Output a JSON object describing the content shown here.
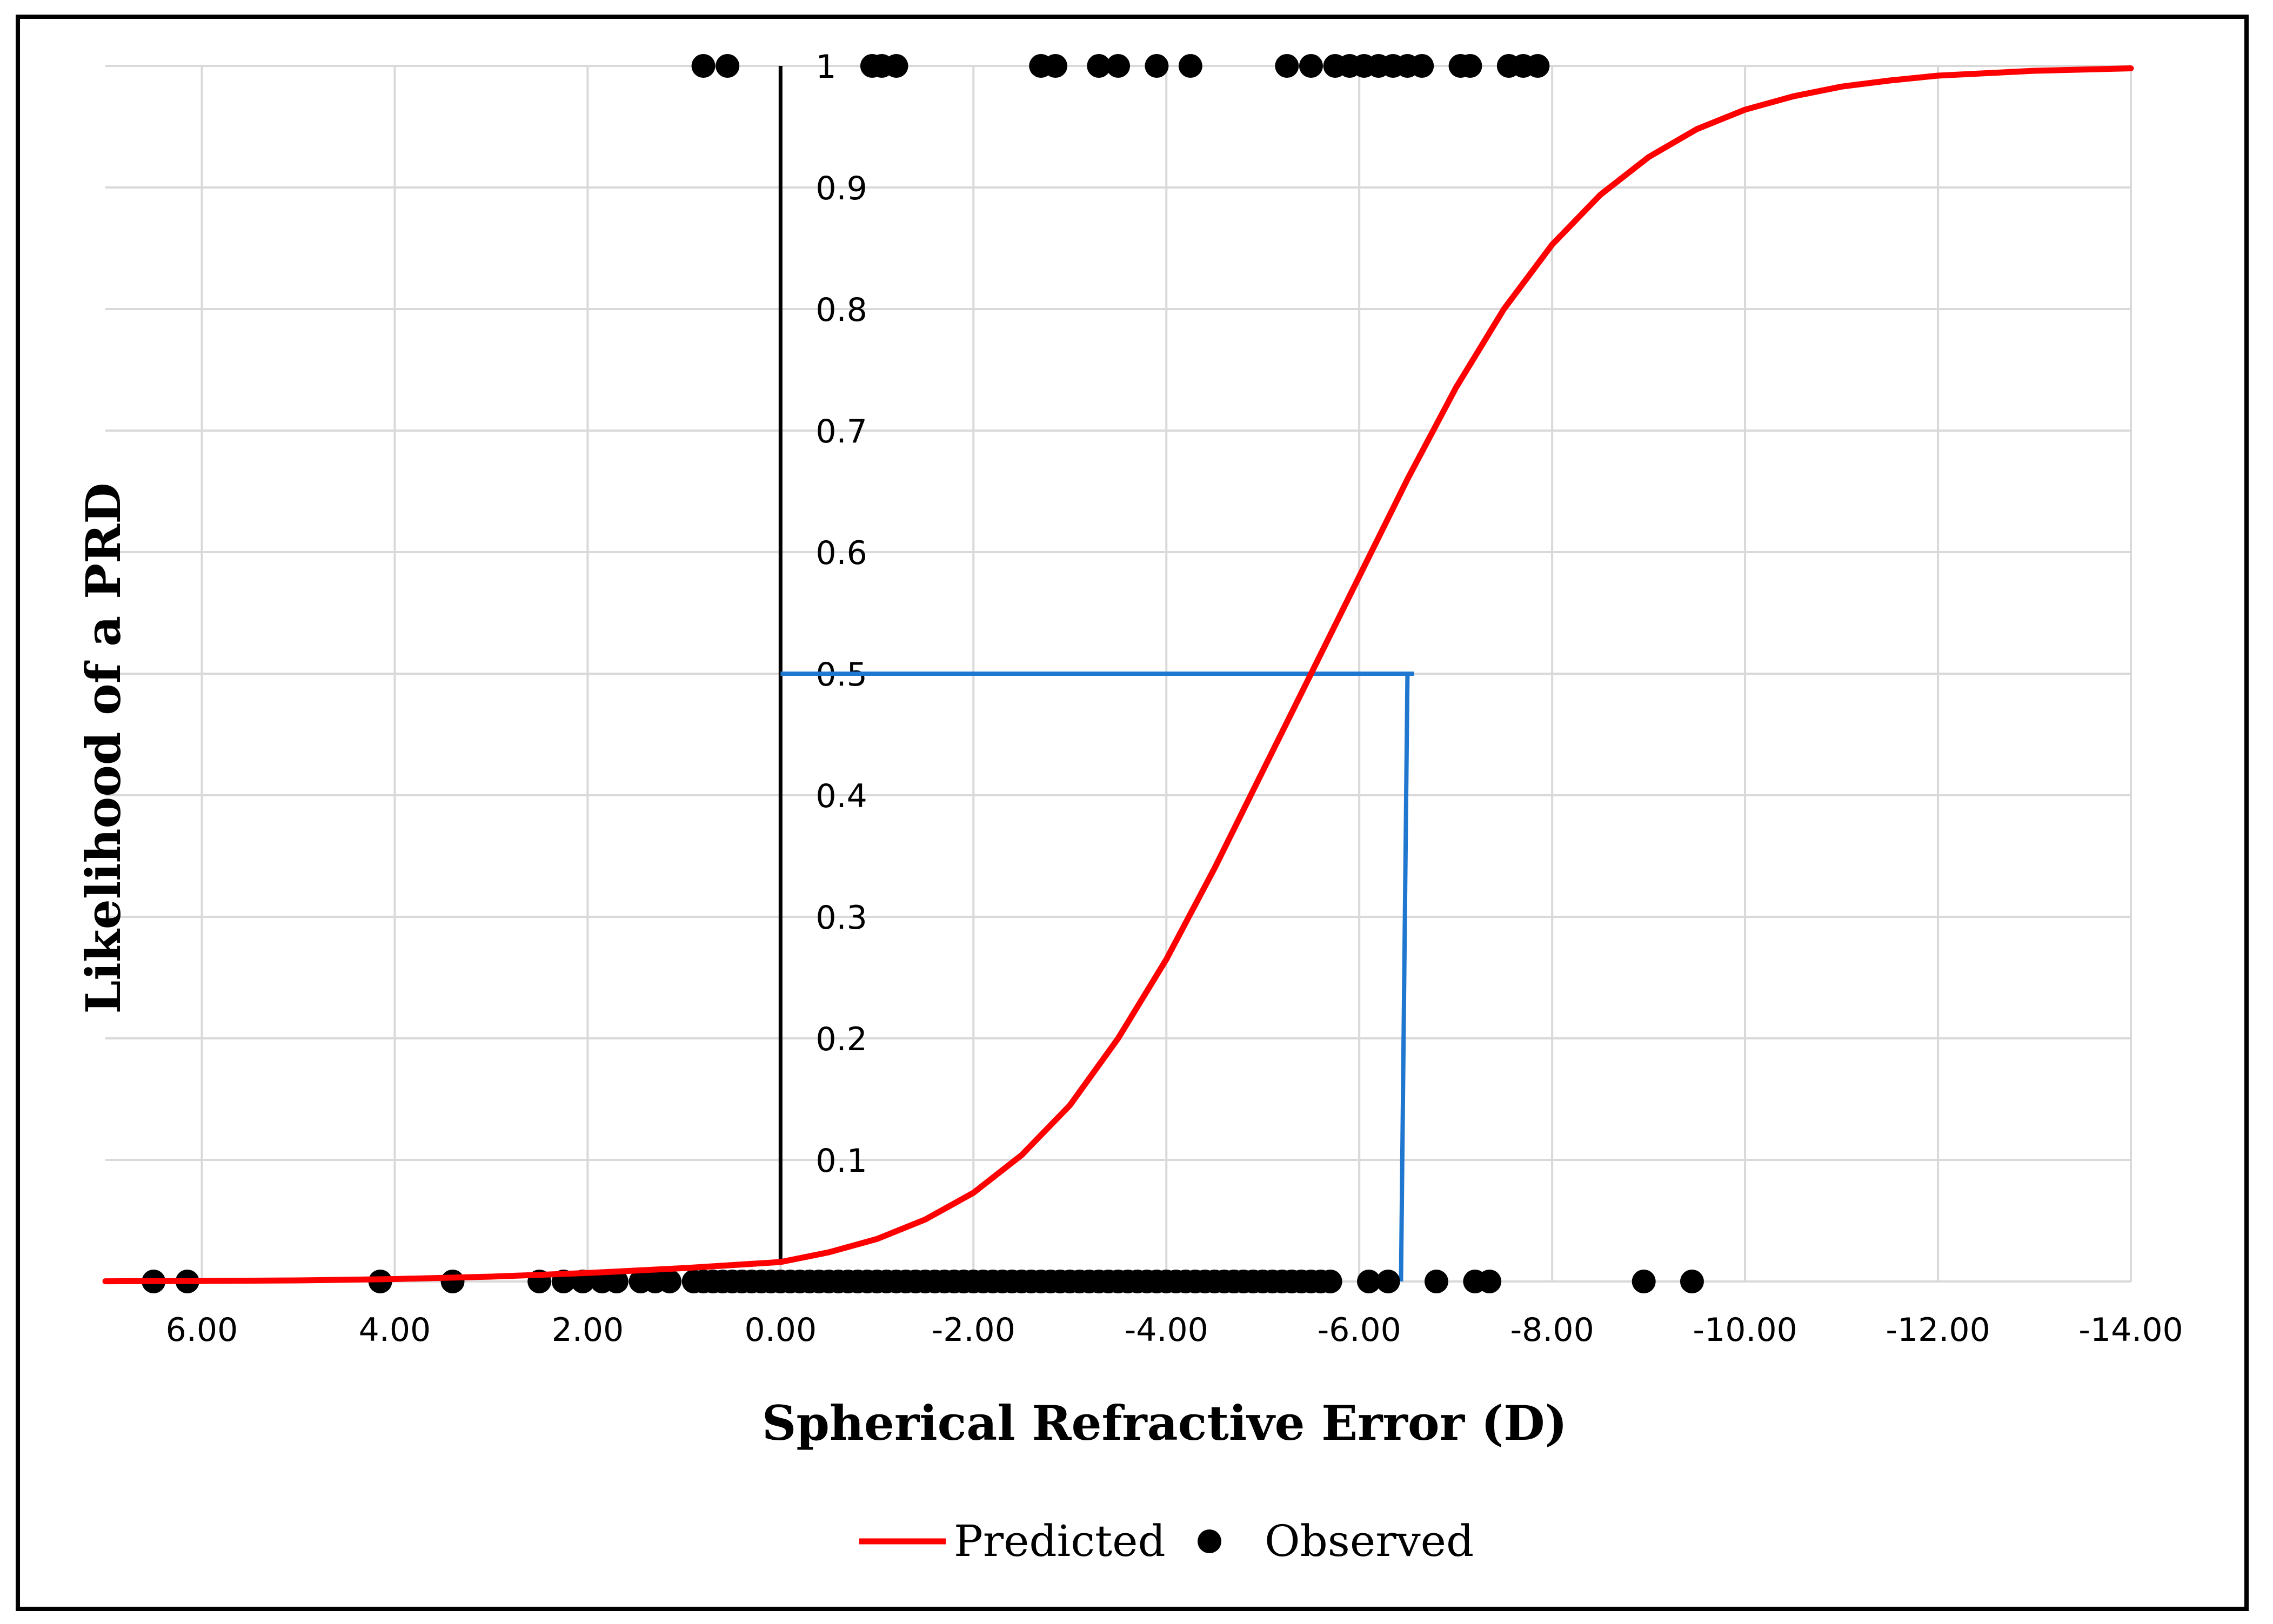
{
  "chart_data": {
    "type": "scatter",
    "xlabel": "Spherical Refractive Error (D)",
    "ylabel": "Likelihood of a PRD",
    "xlim": [
      7,
      -14
    ],
    "ylim": [
      0,
      1
    ],
    "x_ticks": [
      "6.00",
      "4.00",
      "2.00",
      "0.00",
      "-2.00",
      "-4.00",
      "-6.00",
      "-8.00",
      "-10.00",
      "-12.00",
      "-14.00"
    ],
    "y_ticks": [
      "0.1",
      "0.2",
      "0.3",
      "0.4",
      "0.5",
      "0.6",
      "0.7",
      "0.8",
      "0.9",
      "1"
    ],
    "grid": true,
    "legend_position": "bottom",
    "series": [
      {
        "name": "Predicted",
        "kind": "line",
        "color": "#ff0000",
        "x": [
          7,
          6,
          5,
          4,
          3,
          2,
          1,
          0,
          -0.5,
          -1,
          -1.5,
          -2,
          -2.5,
          -3,
          -3.5,
          -4,
          -4.5,
          -5,
          -5.5,
          -6,
          -6.5,
          -7,
          -7.5,
          -8,
          -8.5,
          -9,
          -9.5,
          -10,
          -10.5,
          -11,
          -11.5,
          -12,
          -12.5,
          -13,
          -13.5,
          -14
        ],
        "y": [
          0.0002,
          0.0004,
          0.0009,
          0.002,
          0.004,
          0.007,
          0.011,
          0.016,
          0.024,
          0.035,
          0.051,
          0.073,
          0.104,
          0.145,
          0.2,
          0.265,
          0.34,
          0.42,
          0.5,
          0.58,
          0.66,
          0.735,
          0.8,
          0.853,
          0.894,
          0.925,
          0.948,
          0.964,
          0.975,
          0.983,
          0.988,
          0.992,
          0.994,
          0.996,
          0.997,
          0.998
        ]
      },
      {
        "name": "Observed",
        "kind": "scatter",
        "color": "#000000",
        "points_y1": [
          0.8,
          0.55,
          -0.95,
          -1.05,
          -1.2,
          -2.7,
          -2.85,
          -3.3,
          -3.5,
          -3.9,
          -4.25,
          -5.25,
          -5.5,
          -5.75,
          -5.9,
          -6.05,
          -6.2,
          -6.35,
          -6.5,
          -6.65,
          -7.05,
          -7.15,
          -7.55,
          -7.7,
          -7.85
        ],
        "points_y0": [
          6.5,
          6.15,
          4.15,
          3.4,
          2.5,
          2.25,
          2.05,
          1.85,
          1.7,
          1.45,
          1.3,
          1.15,
          0.9,
          0.8,
          0.7,
          0.6,
          0.5,
          0.4,
          0.3,
          0.2,
          0.1,
          0.0,
          -0.1,
          -0.2,
          -0.3,
          -0.4,
          -0.5,
          -0.6,
          -0.7,
          -0.8,
          -0.9,
          -1.0,
          -1.1,
          -1.2,
          -1.3,
          -1.4,
          -1.5,
          -1.6,
          -1.7,
          -1.8,
          -1.9,
          -2.0,
          -2.1,
          -2.2,
          -2.3,
          -2.4,
          -2.5,
          -2.6,
          -2.7,
          -2.8,
          -2.9,
          -3.0,
          -3.1,
          -3.2,
          -3.3,
          -3.4,
          -3.5,
          -3.6,
          -3.7,
          -3.8,
          -3.9,
          -4.0,
          -4.1,
          -4.2,
          -4.3,
          -4.4,
          -4.5,
          -4.6,
          -4.7,
          -4.8,
          -4.9,
          -5.0,
          -5.1,
          -5.2,
          -5.3,
          -5.4,
          -5.5,
          -5.6,
          -5.7,
          -6.1,
          -6.3,
          -6.8,
          -7.2,
          -7.35,
          -8.95,
          -9.45
        ]
      }
    ],
    "threshold": {
      "color": "#1f77d0",
      "x": -6.5,
      "y": 0.5
    }
  }
}
